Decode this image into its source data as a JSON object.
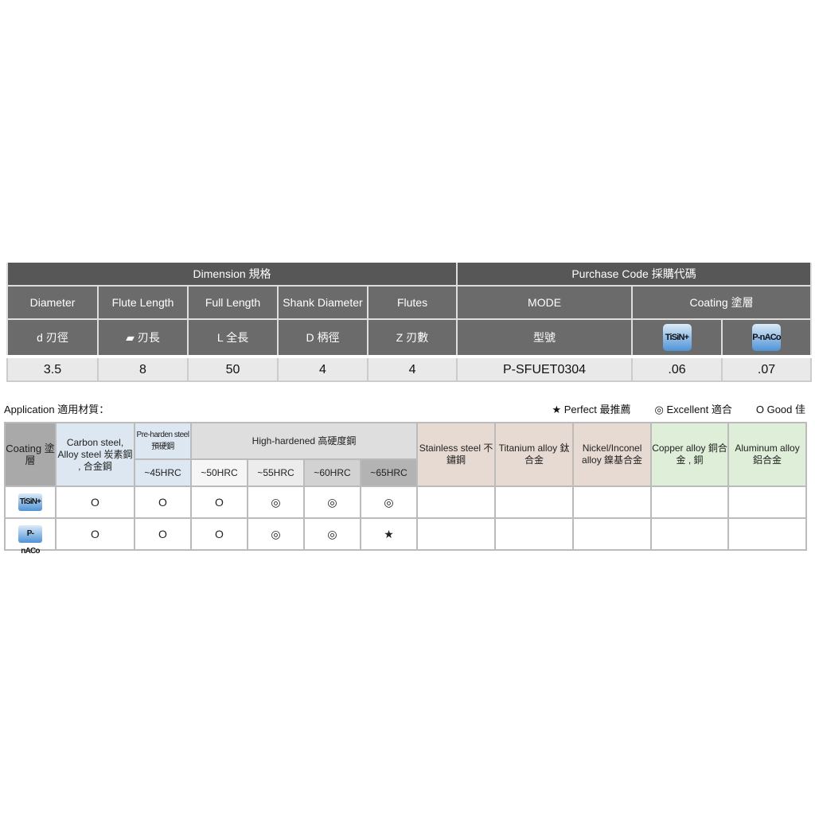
{
  "dimension_table": {
    "group_dimension": "Dimension 規格",
    "group_purchase": "Purchase Code 採購代碼",
    "headers": [
      "Diameter",
      "Flute Length",
      "Full Length",
      "Shank Diameter",
      "Flutes",
      "MODE",
      "Coating 塗層"
    ],
    "symbols": [
      "d 刃徑",
      "▰ 刃長",
      "L 全長",
      "D 柄徑",
      "Z 刃數",
      "型號"
    ],
    "coatings": [
      "TiSiN+",
      "P-nACo"
    ],
    "values": [
      "3.5",
      "8",
      "50",
      "4",
      "4",
      "P-SFUET0304",
      ".06",
      ".07"
    ]
  },
  "application": {
    "title": "Application 適用材質：",
    "legend": [
      "★ Perfect 最推薦",
      "◎ Excellent 適合",
      "O Good 佳"
    ],
    "headers": {
      "coating": "Coating 塗層",
      "carbon": "Carbon steel, Alloy steel 炭素鋼 , 合金鋼",
      "preharden": "Pre-harden steel 預硬鋼",
      "highhard": "High-hardened  高硬度鋼",
      "hrc": [
        "~45HRC",
        "~50HRC",
        "~55HRC",
        "~60HRC",
        "~65HRC"
      ],
      "stainless": "Stainless steel 不鏽鋼",
      "titanium": "Titanium alloy 鈦合金",
      "nickel": "Nickel/Inconel alloy 鎳基合金",
      "copper": "Copper alloy 銅合金 , 銅",
      "aluminum": "Aluminum alloy 鋁合金"
    },
    "rows": [
      {
        "coating": "TiSiN+",
        "cells": [
          "O",
          "O",
          "O",
          "◎",
          "◎",
          "◎",
          "",
          "",
          "",
          "",
          ""
        ]
      },
      {
        "coating": "P-nACo",
        "cells": [
          "O",
          "O",
          "O",
          "◎",
          "◎",
          "★",
          "",
          "",
          "",
          "",
          ""
        ]
      }
    ]
  }
}
